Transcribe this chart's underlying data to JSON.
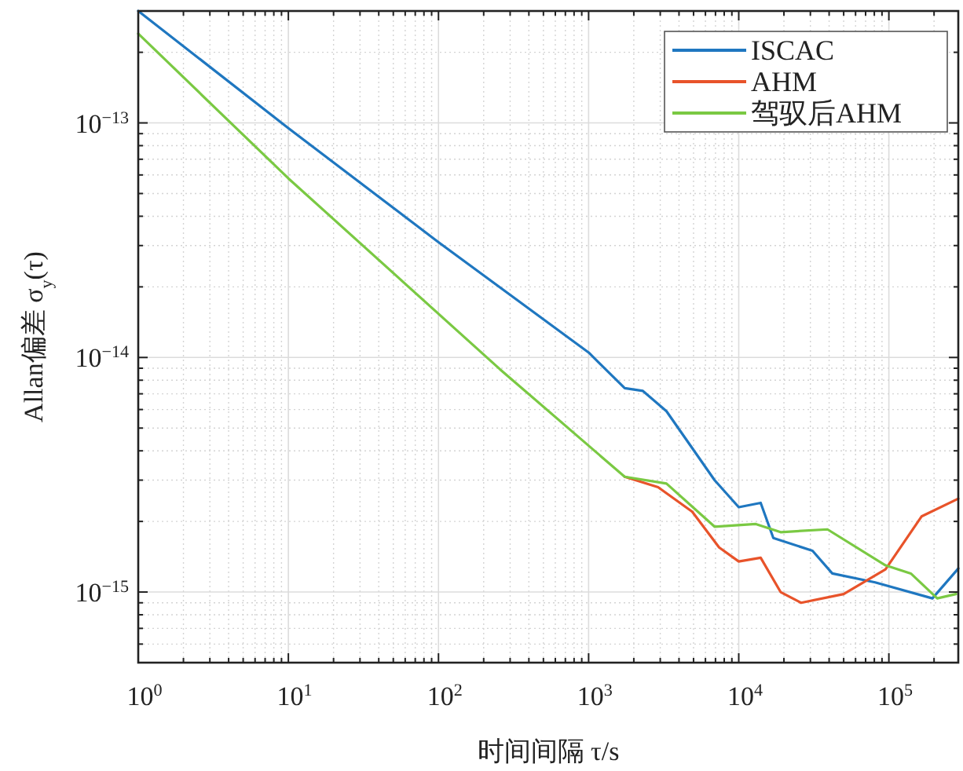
{
  "chart_data": {
    "type": "line",
    "xlabel": "时间间隔 τ/s",
    "ylabel": "Allan偏差 σ$_{y}$(τ)",
    "log": "xy",
    "xlim": [
      1,
      290000
    ],
    "ylim": [
      5e-16,
      3e-13
    ],
    "xticks": [
      {
        "value": 1,
        "label": "10$^{0}$"
      },
      {
        "value": 10,
        "label": "10$^{1}$"
      },
      {
        "value": 100,
        "label": "10$^{2}$"
      },
      {
        "value": 1000,
        "label": "10$^{3}$"
      },
      {
        "value": 10000,
        "label": "10$^{4}$"
      },
      {
        "value": 100000,
        "label": "10$^{5}$"
      }
    ],
    "yticks": [
      {
        "value": 1e-15,
        "label": "10$^{−15}$"
      },
      {
        "value": 1e-14,
        "label": "10$^{−14}$"
      },
      {
        "value": 1e-13,
        "label": "10$^{−13}$"
      }
    ],
    "grid": true,
    "legend": "top right",
    "marker": "none",
    "line_style": "solid",
    "series": [
      {
        "name": "ISCAC",
        "color": "#1f77c0",
        "x": [
          1,
          10,
          100,
          1000,
          1740,
          2300,
          3300,
          6900,
          10000,
          14000,
          17000,
          31000,
          42000,
          81000,
          195000,
          290000
        ],
        "values": [
          3e-13,
          9.5e-14,
          3.1e-14,
          1.05e-14,
          7.4e-15,
          7.2e-15,
          5.9e-15,
          3e-15,
          2.3e-15,
          2.4e-15,
          1.7e-15,
          1.5e-15,
          1.2e-15,
          1.1e-15,
          9.4e-16,
          1.26e-15
        ]
      },
      {
        "name": "AHM",
        "color": "#e8532a",
        "x": [
          1740,
          2900,
          4900,
          7400,
          10000,
          14000,
          19000,
          26000,
          50000,
          95000,
          165000,
          290000
        ],
        "values": [
          3.1e-15,
          2.8e-15,
          2.2e-15,
          1.55e-15,
          1.35e-15,
          1.4e-15,
          1e-15,
          9e-16,
          9.8e-16,
          1.25e-15,
          2.1e-15,
          2.5e-15
        ]
      },
      {
        "name": "驾驭后AHM",
        "color": "#7ac943",
        "x": [
          1,
          10,
          257,
          1740,
          3300,
          6900,
          13000,
          19000,
          39000,
          95000,
          140000,
          210000,
          280000
        ],
        "values": [
          2.4e-13,
          5.8e-14,
          8.9e-15,
          3.1e-15,
          2.9e-15,
          1.9e-15,
          1.95e-15,
          1.8e-15,
          1.85e-15,
          1.3e-15,
          1.2e-15,
          9.4e-16,
          9.8e-16
        ]
      }
    ]
  }
}
